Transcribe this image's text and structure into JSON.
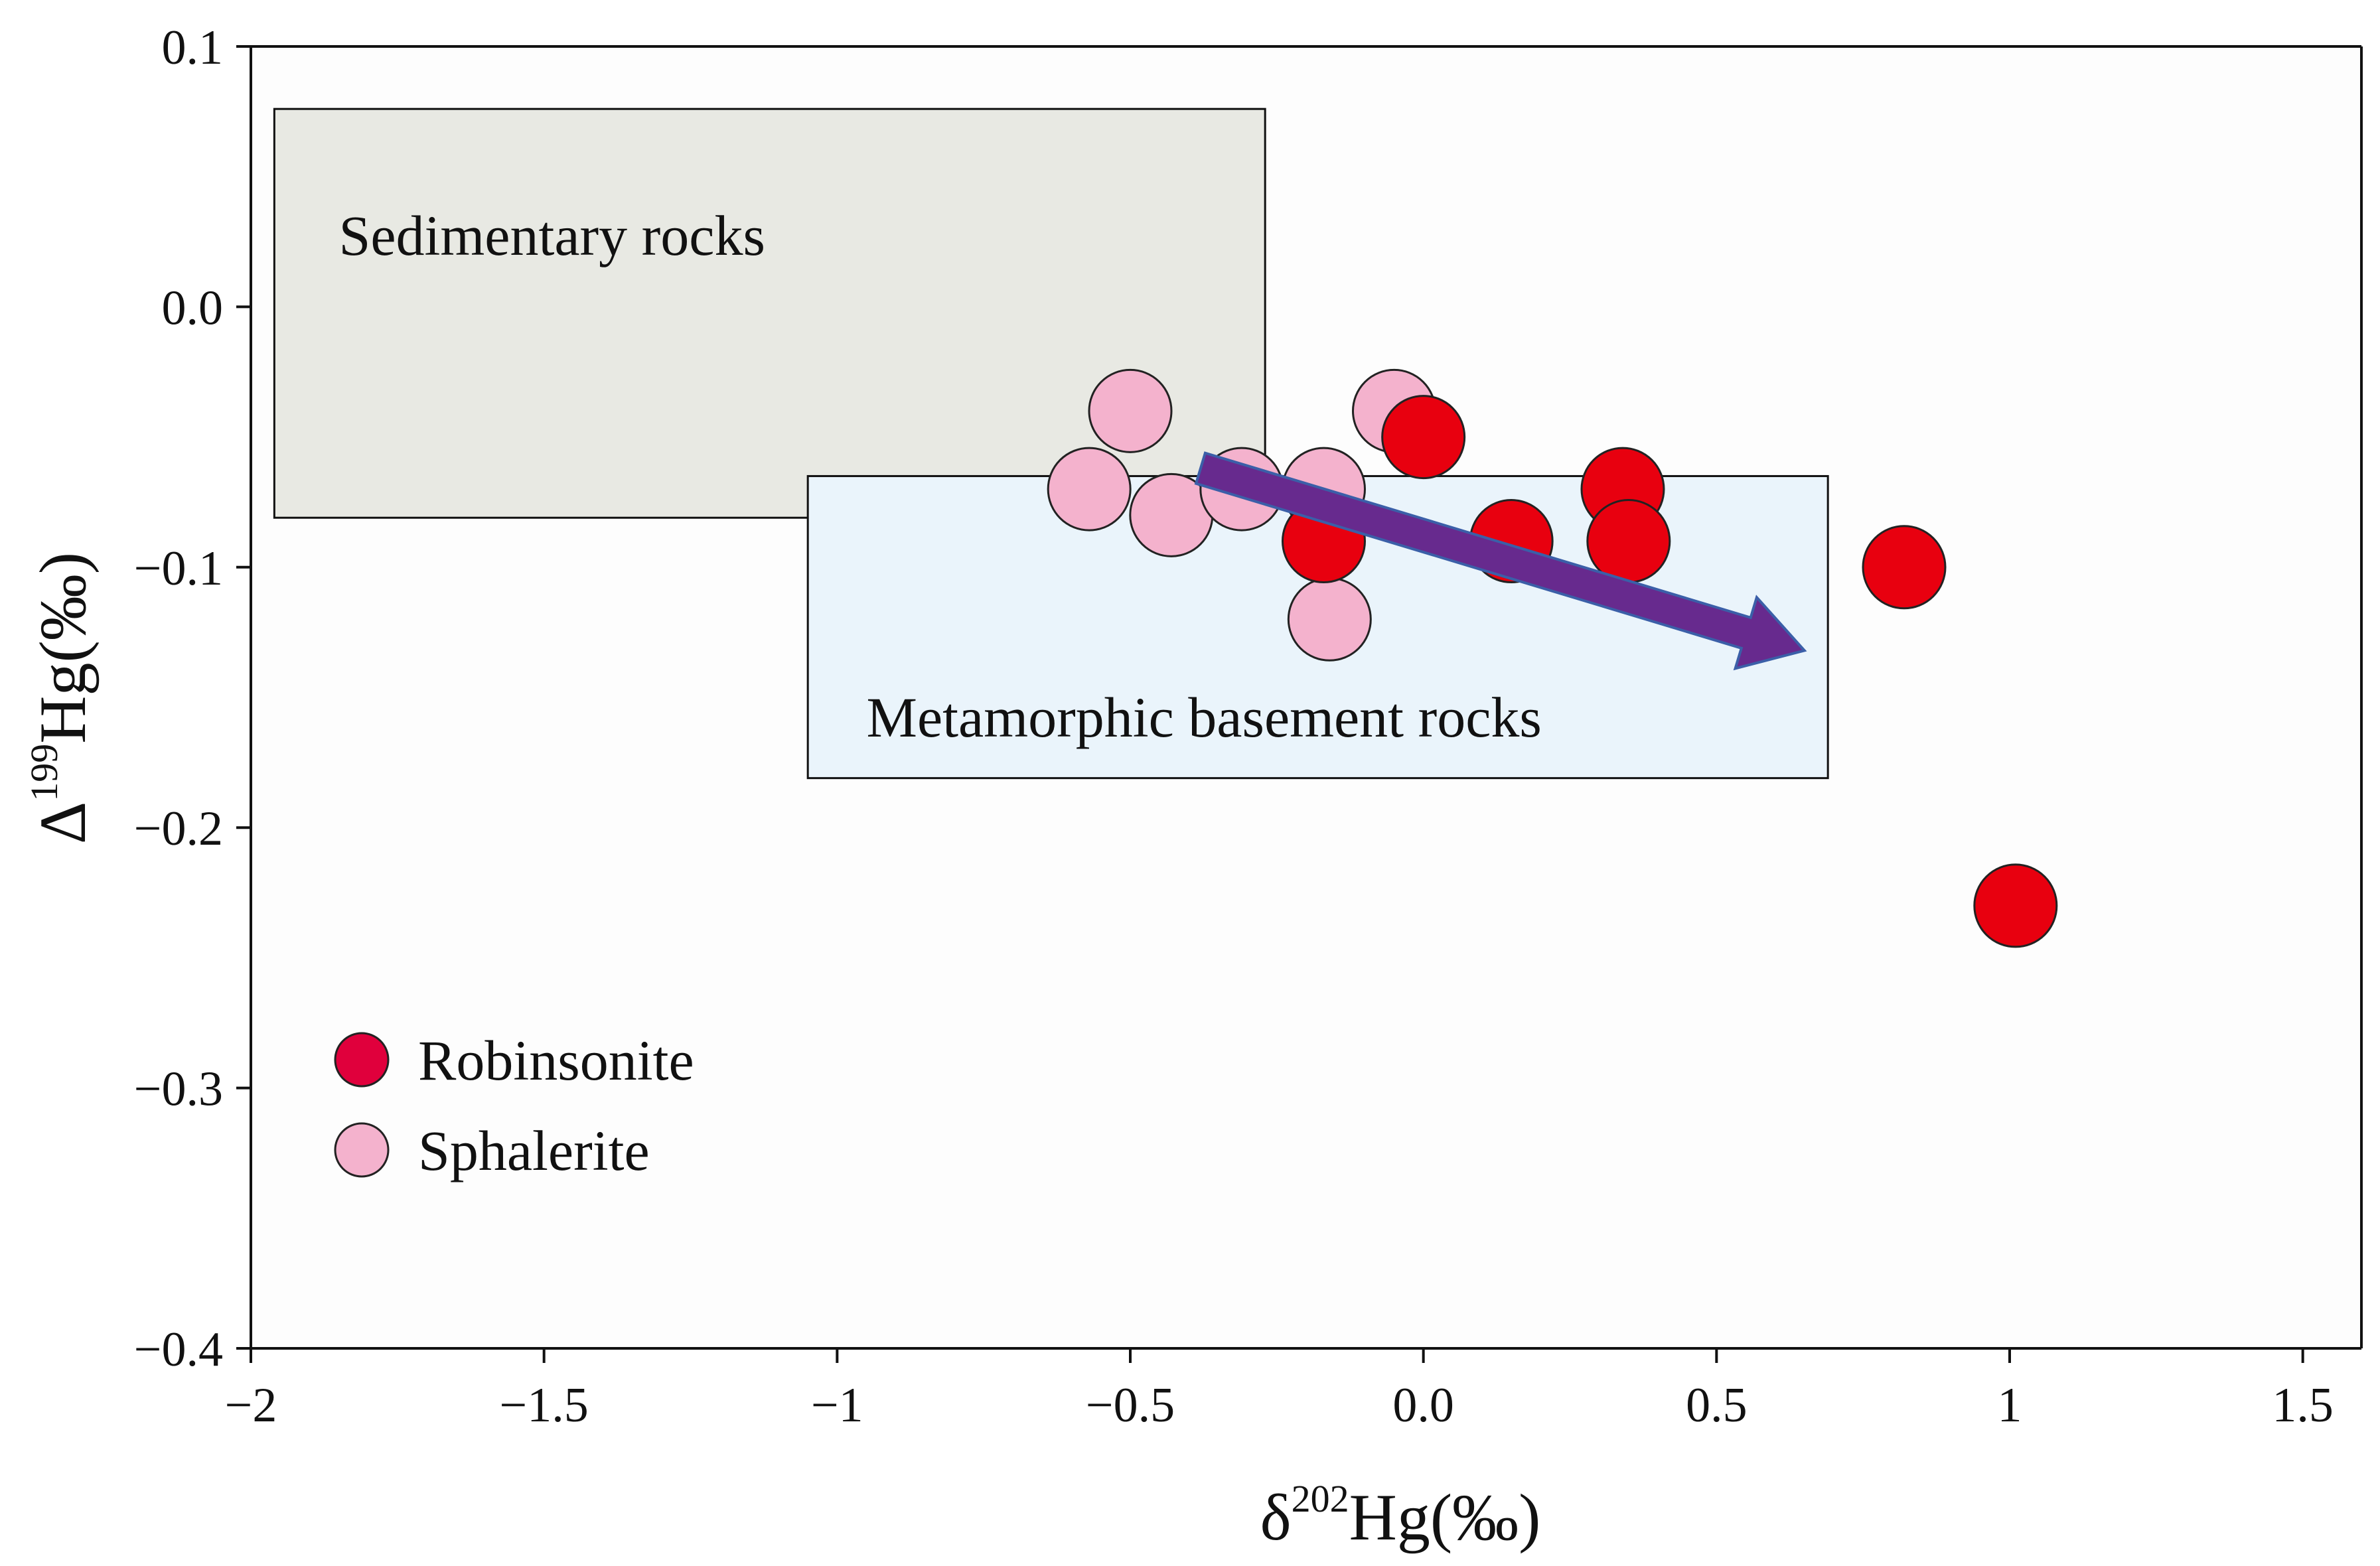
{
  "chart_data": {
    "type": "scatter",
    "xlabel": "δ202Hg(‰)",
    "ylabel": "Δ199Hg(‰)",
    "xlabel_parts": {
      "prefix": "δ",
      "superscript": "202",
      "suffix": "Hg(‰)"
    },
    "ylabel_parts": {
      "prefix": "Δ",
      "superscript": "199",
      "suffix": "Hg(‰)"
    },
    "xlim": [
      -2,
      1.6
    ],
    "ylim": [
      -0.4,
      0.1
    ],
    "x_ticks": [
      {
        "value": -2,
        "label": "−2"
      },
      {
        "value": -1.5,
        "label": "−1.5"
      },
      {
        "value": -1,
        "label": "−1"
      },
      {
        "value": -0.5,
        "label": "−0.5"
      },
      {
        "value": 0,
        "label": "0.0"
      },
      {
        "value": 0.5,
        "label": "0.5"
      },
      {
        "value": 1,
        "label": "1"
      },
      {
        "value": 1.5,
        "label": "1.5"
      }
    ],
    "y_ticks": [
      {
        "value": 0.1,
        "label": "0.1"
      },
      {
        "value": 0,
        "label": "0.0"
      },
      {
        "value": -0.1,
        "label": "−0.1"
      },
      {
        "value": -0.2,
        "label": "−0.2"
      },
      {
        "value": -0.3,
        "label": "−0.3"
      },
      {
        "value": -0.4,
        "label": "−0.4"
      }
    ],
    "grid": false,
    "regions": [
      {
        "label": "Sedimentary rocks",
        "x_range": [
          -1.96,
          -0.27
        ],
        "y_range": [
          -0.081,
          0.076
        ],
        "fill": "#e8e9e3"
      },
      {
        "label": "Metamorphic basement rocks",
        "x_range": [
          -1.05,
          0.69
        ],
        "y_range": [
          -0.181,
          -0.065
        ],
        "fill": "#eaf4fb"
      }
    ],
    "trend_arrow": {
      "from": [
        -0.38,
        -0.062
      ],
      "to": [
        0.65,
        -0.132
      ],
      "color": "#672a8e"
    },
    "series": [
      {
        "name": "Sphalerite",
        "color": "#f4b2cd",
        "points": [
          {
            "x": -0.5,
            "y": -0.04
          },
          {
            "x": -0.57,
            "y": -0.07
          },
          {
            "x": -0.43,
            "y": -0.08
          },
          {
            "x": -0.31,
            "y": -0.07
          },
          {
            "x": -0.17,
            "y": -0.07
          },
          {
            "x": -0.16,
            "y": -0.12
          },
          {
            "x": -0.05,
            "y": -0.04
          }
        ]
      },
      {
        "name": "Robinsonite",
        "color": "#e8000f",
        "points": [
          {
            "x": 0.0,
            "y": -0.05
          },
          {
            "x": -0.17,
            "y": -0.09
          },
          {
            "x": 0.15,
            "y": -0.09
          },
          {
            "x": 0.34,
            "y": -0.07
          },
          {
            "x": 0.35,
            "y": -0.09
          },
          {
            "x": 0.82,
            "y": -0.1
          },
          {
            "x": 1.01,
            "y": -0.23
          }
        ]
      }
    ],
    "legend": {
      "placement": "bottom-left",
      "items": [
        {
          "label": "Robinsonite",
          "color": "#e0003c"
        },
        {
          "label": "Sphalerite",
          "color": "#f4b2cd"
        }
      ]
    }
  }
}
